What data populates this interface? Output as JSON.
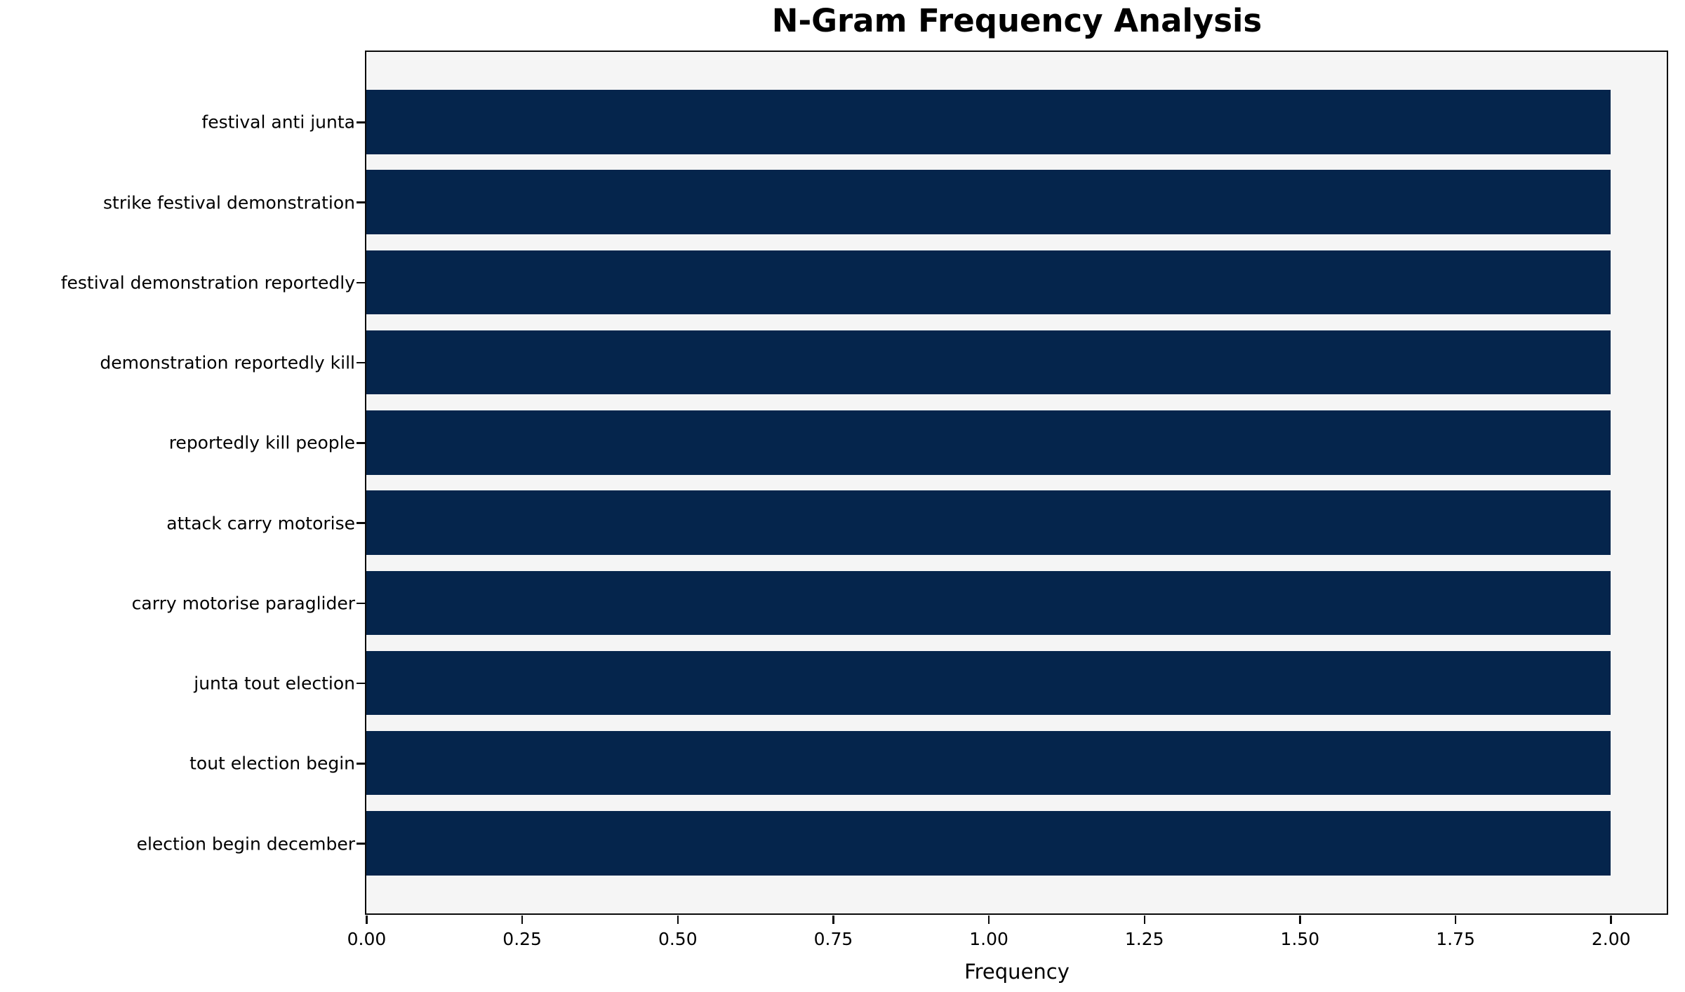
{
  "chart_data": {
    "type": "bar",
    "orientation": "horizontal",
    "title": "N-Gram Frequency Analysis",
    "xlabel": "Frequency",
    "ylabel": "",
    "categories": [
      "festival anti junta",
      "strike festival demonstration",
      "festival demonstration reportedly",
      "demonstration reportedly kill",
      "reportedly kill people",
      "attack carry motorise",
      "carry motorise paraglider",
      "junta tout election",
      "tout election begin",
      "election begin december"
    ],
    "values": [
      2,
      2,
      2,
      2,
      2,
      2,
      2,
      2,
      2,
      2
    ],
    "xlim": [
      0,
      2.09
    ],
    "xticks": {
      "values": [
        0.0,
        0.25,
        0.5,
        0.75,
        1.0,
        1.25,
        1.5,
        1.75,
        2.0
      ],
      "labels": [
        "0.00",
        "0.25",
        "0.50",
        "0.75",
        "1.00",
        "1.25",
        "1.50",
        "1.75",
        "2.00"
      ]
    },
    "grid": false,
    "legend": "none",
    "colors": {
      "bar": "#05254c",
      "plot_background": "#f5f5f5",
      "figure_background": "#ffffff",
      "spine": "#0a0a0a",
      "text": "#000000"
    }
  }
}
